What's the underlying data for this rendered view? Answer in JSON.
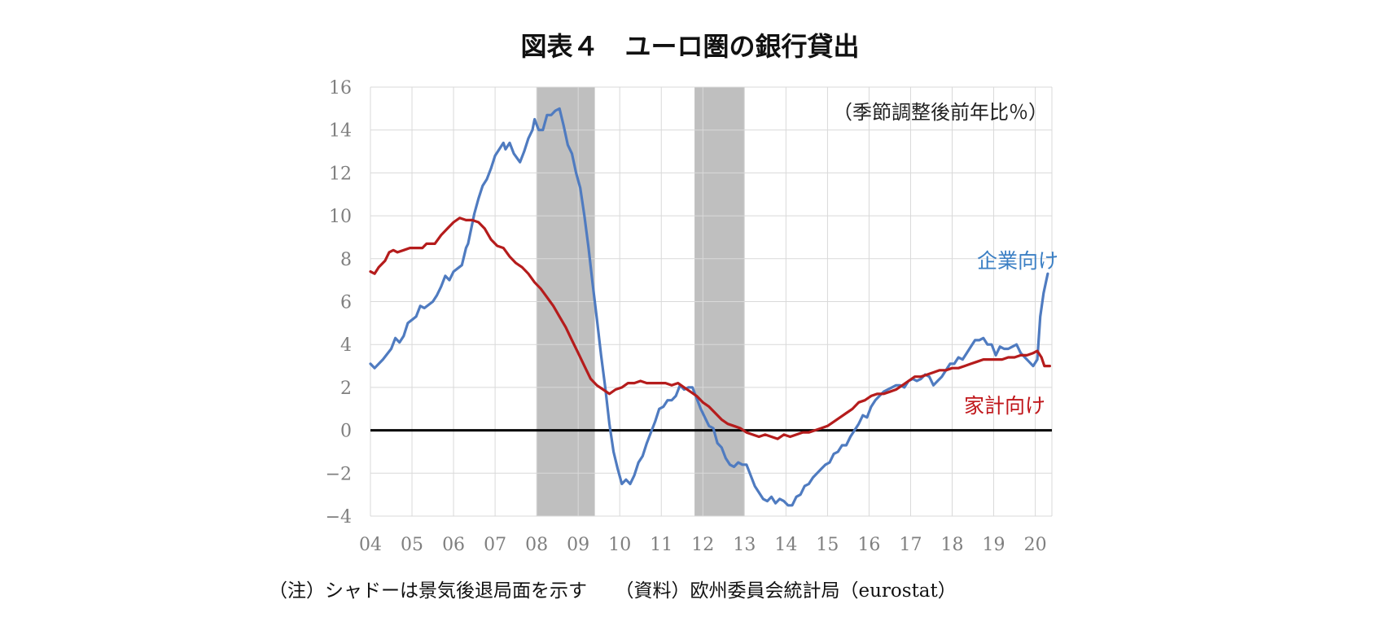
{
  "title": "図表４　ユーロ圏の銀行貸出",
  "footnote": "（注）シャドーは景気後退局面を示す　　（資料）欧州委員会統計局（eurostat）",
  "chart_data": {
    "type": "line",
    "title": "図表４　ユーロ圏の銀行貸出",
    "unit_annotation": "（季節調整後前年比％）",
    "ylim": [
      -4,
      16
    ],
    "yticks": [
      16,
      14,
      12,
      10,
      8,
      6,
      4,
      2,
      0,
      -2,
      -4
    ],
    "xlim": [
      2004.0,
      2020.4
    ],
    "xtick_labels": [
      "04",
      "05",
      "06",
      "07",
      "08",
      "09",
      "10",
      "11",
      "12",
      "13",
      "14",
      "15",
      "16",
      "17",
      "18",
      "19",
      "20"
    ],
    "grid": true,
    "zero_line": true,
    "recessions": [
      [
        2008.0,
        2009.4
      ],
      [
        2011.8,
        2013.0
      ]
    ],
    "colors": {
      "corporate": "#4f7bc0",
      "household": "#b51c1c",
      "shade": "#bfbfbf",
      "corporate_label": "#3b7fc4",
      "household_label": "#c0171b"
    },
    "series": [
      {
        "name": "企業向け",
        "color": "#4f7bc0",
        "points": [
          [
            2004.0,
            3.1
          ],
          [
            2004.1,
            2.9
          ],
          [
            2004.3,
            3.3
          ],
          [
            2004.5,
            3.8
          ],
          [
            2004.6,
            4.3
          ],
          [
            2004.7,
            4.1
          ],
          [
            2004.8,
            4.4
          ],
          [
            2004.9,
            5.0
          ],
          [
            2005.1,
            5.3
          ],
          [
            2005.2,
            5.8
          ],
          [
            2005.3,
            5.7
          ],
          [
            2005.5,
            6.0
          ],
          [
            2005.6,
            6.3
          ],
          [
            2005.7,
            6.7
          ],
          [
            2005.8,
            7.2
          ],
          [
            2005.9,
            7.0
          ],
          [
            2006.0,
            7.4
          ],
          [
            2006.2,
            7.7
          ],
          [
            2006.3,
            8.5
          ],
          [
            2006.35,
            8.7
          ],
          [
            2006.5,
            10.1
          ],
          [
            2006.6,
            10.8
          ],
          [
            2006.7,
            11.4
          ],
          [
            2006.8,
            11.7
          ],
          [
            2006.9,
            12.2
          ],
          [
            2007.0,
            12.8
          ],
          [
            2007.1,
            13.1
          ],
          [
            2007.2,
            13.4
          ],
          [
            2007.25,
            13.1
          ],
          [
            2007.35,
            13.4
          ],
          [
            2007.45,
            12.9
          ],
          [
            2007.6,
            12.5
          ],
          [
            2007.7,
            13.0
          ],
          [
            2007.8,
            13.6
          ],
          [
            2007.9,
            14.0
          ],
          [
            2007.95,
            14.5
          ],
          [
            2008.05,
            14.0
          ],
          [
            2008.15,
            14.0
          ],
          [
            2008.25,
            14.7
          ],
          [
            2008.35,
            14.7
          ],
          [
            2008.45,
            14.9
          ],
          [
            2008.55,
            15.0
          ],
          [
            2008.65,
            14.2
          ],
          [
            2008.75,
            13.3
          ],
          [
            2008.85,
            12.9
          ],
          [
            2008.95,
            12.0
          ],
          [
            2009.05,
            11.3
          ],
          [
            2009.15,
            10.0
          ],
          [
            2009.25,
            8.5
          ],
          [
            2009.35,
            6.8
          ],
          [
            2009.45,
            5.2
          ],
          [
            2009.55,
            3.5
          ],
          [
            2009.65,
            2.0
          ],
          [
            2009.75,
            0.3
          ],
          [
            2009.85,
            -1.0
          ],
          [
            2009.95,
            -1.8
          ],
          [
            2010.05,
            -2.5
          ],
          [
            2010.15,
            -2.3
          ],
          [
            2010.25,
            -2.5
          ],
          [
            2010.35,
            -2.1
          ],
          [
            2010.45,
            -1.5
          ],
          [
            2010.55,
            -1.2
          ],
          [
            2010.65,
            -0.6
          ],
          [
            2010.75,
            -0.1
          ],
          [
            2010.85,
            0.4
          ],
          [
            2010.95,
            1.0
          ],
          [
            2011.05,
            1.1
          ],
          [
            2011.15,
            1.4
          ],
          [
            2011.25,
            1.4
          ],
          [
            2011.35,
            1.6
          ],
          [
            2011.45,
            2.1
          ],
          [
            2011.55,
            1.9
          ],
          [
            2011.65,
            2.0
          ],
          [
            2011.75,
            2.0
          ],
          [
            2011.85,
            1.5
          ],
          [
            2011.95,
            1.0
          ],
          [
            2012.05,
            0.6
          ],
          [
            2012.15,
            0.2
          ],
          [
            2012.25,
            0.1
          ],
          [
            2012.35,
            -0.6
          ],
          [
            2012.45,
            -0.8
          ],
          [
            2012.55,
            -1.3
          ],
          [
            2012.65,
            -1.6
          ],
          [
            2012.75,
            -1.7
          ],
          [
            2012.85,
            -1.5
          ],
          [
            2012.95,
            -1.6
          ],
          [
            2013.05,
            -1.6
          ],
          [
            2013.15,
            -2.1
          ],
          [
            2013.25,
            -2.6
          ],
          [
            2013.35,
            -2.9
          ],
          [
            2013.45,
            -3.2
          ],
          [
            2013.55,
            -3.3
          ],
          [
            2013.65,
            -3.1
          ],
          [
            2013.75,
            -3.4
          ],
          [
            2013.85,
            -3.2
          ],
          [
            2013.95,
            -3.3
          ],
          [
            2014.05,
            -3.5
          ],
          [
            2014.15,
            -3.5
          ],
          [
            2014.25,
            -3.1
          ],
          [
            2014.35,
            -3.0
          ],
          [
            2014.45,
            -2.6
          ],
          [
            2014.55,
            -2.5
          ],
          [
            2014.65,
            -2.2
          ],
          [
            2014.75,
            -2.0
          ],
          [
            2014.85,
            -1.8
          ],
          [
            2014.95,
            -1.6
          ],
          [
            2015.05,
            -1.5
          ],
          [
            2015.15,
            -1.1
          ],
          [
            2015.25,
            -1.0
          ],
          [
            2015.35,
            -0.7
          ],
          [
            2015.45,
            -0.7
          ],
          [
            2015.55,
            -0.3
          ],
          [
            2015.65,
            0.0
          ],
          [
            2015.75,
            0.3
          ],
          [
            2015.85,
            0.7
          ],
          [
            2015.95,
            0.6
          ],
          [
            2016.05,
            1.1
          ],
          [
            2016.15,
            1.4
          ],
          [
            2016.25,
            1.6
          ],
          [
            2016.35,
            1.8
          ],
          [
            2016.45,
            1.9
          ],
          [
            2016.55,
            2.0
          ],
          [
            2016.65,
            2.1
          ],
          [
            2016.75,
            2.1
          ],
          [
            2016.85,
            2.0
          ],
          [
            2016.95,
            2.3
          ],
          [
            2017.05,
            2.4
          ],
          [
            2017.15,
            2.3
          ],
          [
            2017.25,
            2.4
          ],
          [
            2017.35,
            2.6
          ],
          [
            2017.45,
            2.5
          ],
          [
            2017.55,
            2.1
          ],
          [
            2017.65,
            2.3
          ],
          [
            2017.75,
            2.5
          ],
          [
            2017.85,
            2.8
          ],
          [
            2017.95,
            3.1
          ],
          [
            2018.05,
            3.1
          ],
          [
            2018.15,
            3.4
          ],
          [
            2018.25,
            3.3
          ],
          [
            2018.35,
            3.6
          ],
          [
            2018.45,
            3.9
          ],
          [
            2018.55,
            4.2
          ],
          [
            2018.65,
            4.2
          ],
          [
            2018.75,
            4.3
          ],
          [
            2018.85,
            4.0
          ],
          [
            2018.95,
            4.0
          ],
          [
            2019.05,
            3.5
          ],
          [
            2019.15,
            3.9
          ],
          [
            2019.25,
            3.8
          ],
          [
            2019.35,
            3.8
          ],
          [
            2019.45,
            3.9
          ],
          [
            2019.55,
            4.0
          ],
          [
            2019.65,
            3.6
          ],
          [
            2019.75,
            3.4
          ],
          [
            2019.85,
            3.2
          ],
          [
            2019.95,
            3.0
          ],
          [
            2020.05,
            3.3
          ],
          [
            2020.12,
            5.3
          ],
          [
            2020.2,
            6.4
          ],
          [
            2020.3,
            7.3
          ]
        ]
      },
      {
        "name": "家計向け",
        "color": "#b51c1c",
        "points": [
          [
            2004.0,
            7.4
          ],
          [
            2004.1,
            7.3
          ],
          [
            2004.2,
            7.6
          ],
          [
            2004.35,
            7.9
          ],
          [
            2004.45,
            8.3
          ],
          [
            2004.55,
            8.4
          ],
          [
            2004.65,
            8.3
          ],
          [
            2004.8,
            8.4
          ],
          [
            2004.95,
            8.5
          ],
          [
            2005.1,
            8.5
          ],
          [
            2005.25,
            8.5
          ],
          [
            2005.35,
            8.7
          ],
          [
            2005.55,
            8.7
          ],
          [
            2005.7,
            9.1
          ],
          [
            2005.85,
            9.4
          ],
          [
            2006.0,
            9.7
          ],
          [
            2006.15,
            9.9
          ],
          [
            2006.3,
            9.8
          ],
          [
            2006.45,
            9.8
          ],
          [
            2006.6,
            9.7
          ],
          [
            2006.75,
            9.4
          ],
          [
            2006.9,
            8.9
          ],
          [
            2007.05,
            8.6
          ],
          [
            2007.2,
            8.5
          ],
          [
            2007.35,
            8.1
          ],
          [
            2007.5,
            7.8
          ],
          [
            2007.65,
            7.6
          ],
          [
            2007.8,
            7.3
          ],
          [
            2007.95,
            6.9
          ],
          [
            2008.1,
            6.6
          ],
          [
            2008.25,
            6.2
          ],
          [
            2008.4,
            5.8
          ],
          [
            2008.55,
            5.3
          ],
          [
            2008.7,
            4.8
          ],
          [
            2008.85,
            4.2
          ],
          [
            2009.0,
            3.6
          ],
          [
            2009.15,
            3.0
          ],
          [
            2009.3,
            2.4
          ],
          [
            2009.45,
            2.1
          ],
          [
            2009.6,
            1.9
          ],
          [
            2009.75,
            1.7
          ],
          [
            2009.9,
            1.9
          ],
          [
            2010.05,
            2.0
          ],
          [
            2010.2,
            2.2
          ],
          [
            2010.35,
            2.2
          ],
          [
            2010.5,
            2.3
          ],
          [
            2010.65,
            2.2
          ],
          [
            2010.8,
            2.2
          ],
          [
            2010.95,
            2.2
          ],
          [
            2011.1,
            2.2
          ],
          [
            2011.25,
            2.1
          ],
          [
            2011.4,
            2.2
          ],
          [
            2011.55,
            2.0
          ],
          [
            2011.7,
            1.8
          ],
          [
            2011.85,
            1.6
          ],
          [
            2012.0,
            1.3
          ],
          [
            2012.15,
            1.1
          ],
          [
            2012.3,
            0.8
          ],
          [
            2012.45,
            0.5
          ],
          [
            2012.6,
            0.3
          ],
          [
            2012.75,
            0.2
          ],
          [
            2012.9,
            0.1
          ],
          [
            2013.05,
            -0.1
          ],
          [
            2013.2,
            -0.2
          ],
          [
            2013.35,
            -0.3
          ],
          [
            2013.5,
            -0.2
          ],
          [
            2013.65,
            -0.3
          ],
          [
            2013.8,
            -0.4
          ],
          [
            2013.95,
            -0.2
          ],
          [
            2014.1,
            -0.3
          ],
          [
            2014.25,
            -0.2
          ],
          [
            2014.4,
            -0.1
          ],
          [
            2014.55,
            -0.1
          ],
          [
            2014.7,
            0.0
          ],
          [
            2014.85,
            0.1
          ],
          [
            2015.0,
            0.2
          ],
          [
            2015.15,
            0.4
          ],
          [
            2015.3,
            0.6
          ],
          [
            2015.45,
            0.8
          ],
          [
            2015.6,
            1.0
          ],
          [
            2015.75,
            1.3
          ],
          [
            2015.9,
            1.4
          ],
          [
            2016.05,
            1.6
          ],
          [
            2016.2,
            1.7
          ],
          [
            2016.35,
            1.7
          ],
          [
            2016.5,
            1.8
          ],
          [
            2016.65,
            1.9
          ],
          [
            2016.8,
            2.1
          ],
          [
            2016.95,
            2.3
          ],
          [
            2017.1,
            2.5
          ],
          [
            2017.25,
            2.5
          ],
          [
            2017.4,
            2.6
          ],
          [
            2017.55,
            2.7
          ],
          [
            2017.7,
            2.8
          ],
          [
            2017.85,
            2.8
          ],
          [
            2018.0,
            2.9
          ],
          [
            2018.15,
            2.9
          ],
          [
            2018.3,
            3.0
          ],
          [
            2018.45,
            3.1
          ],
          [
            2018.6,
            3.2
          ],
          [
            2018.75,
            3.3
          ],
          [
            2018.9,
            3.3
          ],
          [
            2019.05,
            3.3
          ],
          [
            2019.2,
            3.3
          ],
          [
            2019.35,
            3.4
          ],
          [
            2019.5,
            3.4
          ],
          [
            2019.65,
            3.5
          ],
          [
            2019.8,
            3.5
          ],
          [
            2019.95,
            3.6
          ],
          [
            2020.05,
            3.7
          ],
          [
            2020.15,
            3.4
          ],
          [
            2020.22,
            3.0
          ],
          [
            2020.35,
            3.0
          ]
        ]
      }
    ]
  }
}
